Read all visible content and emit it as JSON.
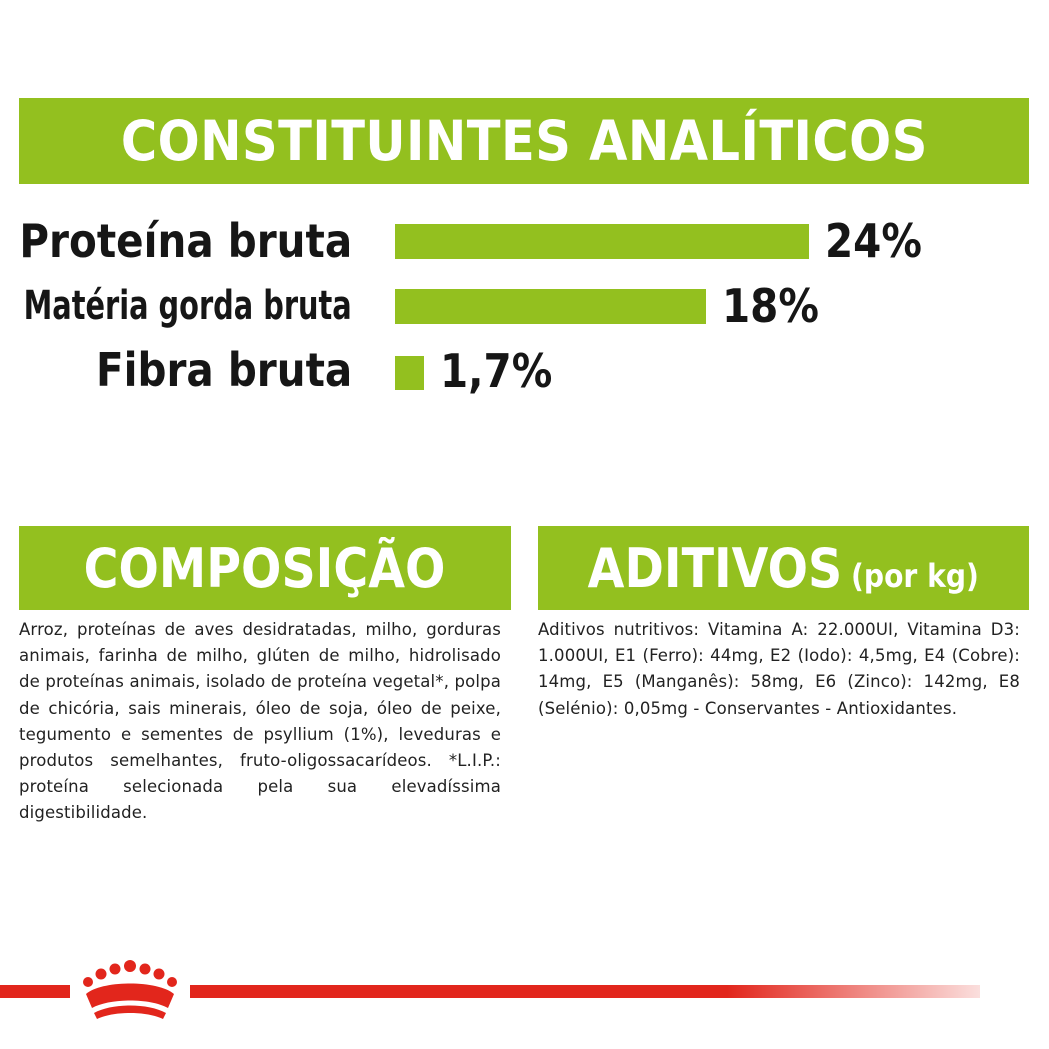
{
  "header": {
    "title": "CONSTITUINTES ANALÍTICOS"
  },
  "nutrients": [
    {
      "label": "Proteína bruta",
      "value": "24%",
      "percent": 24
    },
    {
      "label": "Matéria gorda bruta",
      "value": "18%",
      "percent": 18
    },
    {
      "label": "Fibra bruta",
      "value": "1,7%",
      "percent": 1.7
    }
  ],
  "composition": {
    "title": "COMPOSIÇÃO",
    "text": "Arroz, proteínas de aves desidratadas, milho, gorduras animais, farinha de milho, glúten de milho, hidrolisado de proteínas animais, isolado de proteína vegetal*, polpa de chicória, sais minerais, óleo de soja, óleo de peixe, tegumento e sementes de psyllium (1%), leveduras e produtos semelhantes, fruto-oligossacarídeos. *L.I.P.: proteína selecionada pela sua elevadíssima digestibilidade."
  },
  "additives": {
    "title": "ADITIVOS",
    "subtitle": "(por kg)",
    "text": "Aditivos nutritivos: Vitamina A: 22.000UI, Vitamina D3: 1.000UI, E1 (Ferro): 44mg, E2 (Iodo): 4,5mg, E4 (Cobre): 14mg, E5 (Manganês): 58mg, E6 (Zinco): 142mg, E8 (Selénio): 0,05mg - Conservantes - Antioxidantes."
  },
  "colors": {
    "accent_green": "#93c01f",
    "brand_red": "#e2261c"
  },
  "logo": {
    "icon": "royal-canin-crown-icon"
  }
}
